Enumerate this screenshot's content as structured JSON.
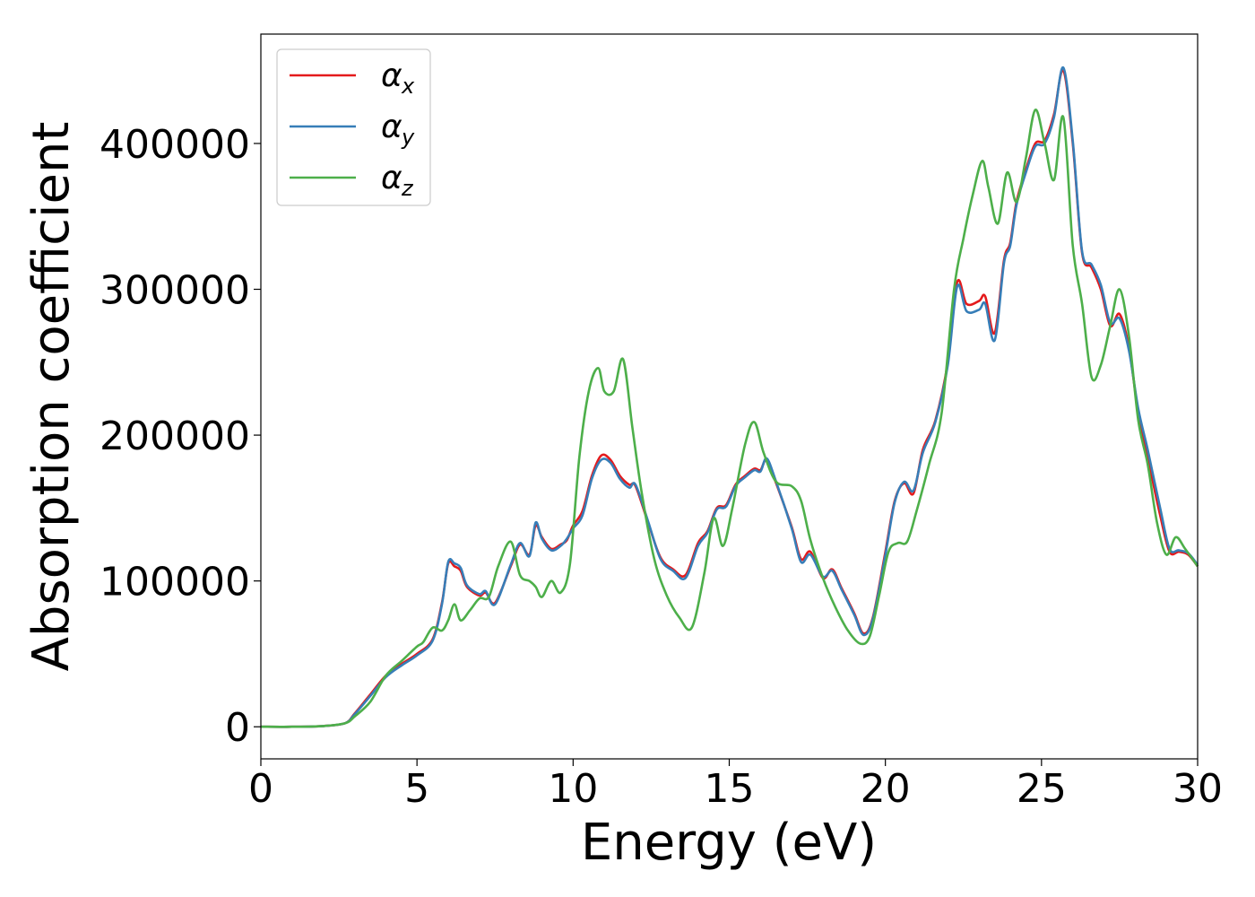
{
  "chart_data": {
    "type": "line",
    "title": "",
    "xlabel": "Energy (eV)",
    "ylabel": "Absorption coefficient",
    "xlim": [
      0,
      30
    ],
    "ylim": [
      -22000,
      475000
    ],
    "xticks": [
      0,
      5,
      10,
      15,
      20,
      25,
      30
    ],
    "yticks": [
      0,
      100000,
      200000,
      300000,
      400000
    ],
    "grid": false,
    "legend_position": "top-left",
    "series": [
      {
        "name": "αx",
        "legend_symbol": "α",
        "legend_subscript": "x",
        "color": "#e41a1c",
        "x": [
          0,
          1,
          2,
          2.7,
          3,
          3.5,
          4,
          4.5,
          5,
          5.5,
          5.8,
          6,
          6.2,
          6.4,
          6.6,
          7,
          7.2,
          7.5,
          8,
          8.3,
          8.6,
          8.8,
          9,
          9.3,
          9.6,
          9.8,
          10,
          10.3,
          10.6,
          10.9,
          11.2,
          11.5,
          11.8,
          12,
          12.4,
          12.8,
          13.2,
          13.6,
          14,
          14.3,
          14.6,
          14.9,
          15.2,
          15.5,
          15.8,
          16,
          16.2,
          16.5,
          17,
          17.3,
          17.6,
          18,
          18.3,
          18.6,
          19,
          19.3,
          19.6,
          20,
          20.3,
          20.6,
          20.9,
          21.2,
          21.6,
          22,
          22.3,
          22.6,
          23,
          23.2,
          23.5,
          23.8,
          24,
          24.2,
          24.5,
          24.8,
          25.1,
          25.4,
          25.7,
          26,
          26.3,
          26.6,
          26.9,
          27.2,
          27.5,
          27.8,
          28.1,
          28.4,
          28.8,
          29.1,
          29.4,
          29.7,
          30
        ],
        "values": [
          0,
          0,
          500,
          2500,
          9000,
          22000,
          35000,
          43000,
          50000,
          60000,
          85000,
          112000,
          110000,
          107000,
          96000,
          90000,
          92000,
          85000,
          110000,
          125000,
          118000,
          138000,
          130000,
          122000,
          125000,
          128000,
          138000,
          148000,
          172000,
          186000,
          183000,
          172000,
          166000,
          165000,
          140000,
          116000,
          108000,
          104000,
          126000,
          134000,
          150000,
          152000,
          166000,
          172000,
          177000,
          176000,
          183000,
          167000,
          137000,
          115000,
          120000,
          102000,
          108000,
          95000,
          78000,
          64000,
          75000,
          120000,
          155000,
          167000,
          160000,
          190000,
          210000,
          250000,
          305000,
          290000,
          292000,
          295000,
          270000,
          320000,
          332000,
          360000,
          382000,
          400000,
          402000,
          420000,
          450000,
          400000,
          325000,
          315000,
          300000,
          275000,
          283000,
          260000,
          215000,
          185000,
          145000,
          120000,
          120000,
          118000,
          110000
        ]
      },
      {
        "name": "αy",
        "legend_symbol": "α",
        "legend_subscript": "y",
        "color": "#377eb8",
        "x": [
          0,
          1,
          2,
          2.7,
          3,
          3.5,
          4,
          4.5,
          5,
          5.5,
          5.8,
          6,
          6.2,
          6.4,
          6.6,
          7,
          7.2,
          7.5,
          8,
          8.3,
          8.6,
          8.8,
          9,
          9.3,
          9.6,
          9.8,
          10,
          10.3,
          10.6,
          10.9,
          11.2,
          11.5,
          11.8,
          12,
          12.4,
          12.8,
          13.2,
          13.6,
          14,
          14.3,
          14.6,
          14.9,
          15.2,
          15.5,
          15.8,
          16,
          16.2,
          16.5,
          17,
          17.3,
          17.6,
          18,
          18.3,
          18.6,
          19,
          19.3,
          19.6,
          20,
          20.3,
          20.6,
          20.9,
          21.2,
          21.6,
          22,
          22.3,
          22.6,
          23,
          23.2,
          23.5,
          23.8,
          24,
          24.2,
          24.5,
          24.8,
          25.1,
          25.4,
          25.7,
          26,
          26.3,
          26.6,
          26.9,
          27.2,
          27.5,
          27.8,
          28.1,
          28.4,
          28.8,
          29.1,
          29.4,
          29.7,
          30
        ],
        "values": [
          0,
          0,
          500,
          2500,
          8500,
          21000,
          34000,
          42000,
          49000,
          59000,
          84000,
          113000,
          112000,
          109000,
          97000,
          91000,
          93000,
          84000,
          111000,
          126000,
          117000,
          140000,
          129000,
          121000,
          124000,
          129000,
          136000,
          145000,
          170000,
          183000,
          181000,
          170000,
          164000,
          166000,
          141000,
          115000,
          107000,
          102000,
          124000,
          133000,
          149000,
          151000,
          165000,
          171000,
          176000,
          175000,
          184000,
          168000,
          136000,
          113000,
          118000,
          103000,
          107000,
          94000,
          77000,
          63000,
          74000,
          118000,
          154000,
          168000,
          162000,
          188000,
          209000,
          248000,
          302000,
          285000,
          286000,
          290000,
          265000,
          318000,
          330000,
          358000,
          380000,
          398000,
          400000,
          418000,
          452000,
          402000,
          326000,
          317000,
          303000,
          277000,
          280000,
          258000,
          218000,
          190000,
          150000,
          122000,
          121000,
          119000,
          111000
        ]
      },
      {
        "name": "αz",
        "legend_symbol": "α",
        "legend_subscript": "z",
        "color": "#4daf4a",
        "x": [
          0,
          1,
          2,
          2.7,
          3,
          3.5,
          4,
          4.5,
          5,
          5.2,
          5.5,
          5.8,
          6,
          6.2,
          6.4,
          6.7,
          7,
          7.3,
          7.6,
          8,
          8.3,
          8.6,
          8.8,
          9,
          9.3,
          9.6,
          9.9,
          10.2,
          10.5,
          10.8,
          11,
          11.3,
          11.6,
          11.9,
          12.2,
          12.6,
          13,
          13.4,
          13.8,
          14.2,
          14.5,
          14.8,
          15.1,
          15.5,
          15.8,
          16.1,
          16.5,
          17,
          17.3,
          17.6,
          18,
          18.4,
          18.8,
          19.2,
          19.5,
          19.8,
          20.1,
          20.4,
          20.7,
          21,
          21.4,
          21.8,
          22.2,
          22.5,
          22.8,
          23.1,
          23.3,
          23.6,
          23.9,
          24.2,
          24.5,
          24.8,
          25.1,
          25.4,
          25.7,
          26,
          26.3,
          26.6,
          26.9,
          27.2,
          27.5,
          27.8,
          28.1,
          28.4,
          28.7,
          29,
          29.3,
          29.6,
          30
        ],
        "values": [
          0,
          0,
          500,
          2500,
          7000,
          17000,
          35000,
          45000,
          55000,
          58000,
          68000,
          66000,
          73000,
          84000,
          73000,
          80000,
          88000,
          89000,
          110000,
          127000,
          104000,
          100000,
          96000,
          89000,
          100000,
          92000,
          112000,
          185000,
          230000,
          246000,
          230000,
          230000,
          252000,
          205000,
          160000,
          115000,
          90000,
          75000,
          68000,
          105000,
          143000,
          124000,
          150000,
          193000,
          209000,
          188000,
          168000,
          165000,
          155000,
          128000,
          102000,
          82000,
          66000,
          57000,
          62000,
          90000,
          120000,
          126000,
          127000,
          148000,
          180000,
          215000,
          300000,
          335000,
          365000,
          388000,
          370000,
          345000,
          380000,
          360000,
          390000,
          423000,
          400000,
          375000,
          418000,
          330000,
          290000,
          240000,
          248000,
          275000,
          300000,
          268000,
          210000,
          180000,
          140000,
          118000,
          130000,
          122000,
          110000
        ]
      }
    ]
  }
}
